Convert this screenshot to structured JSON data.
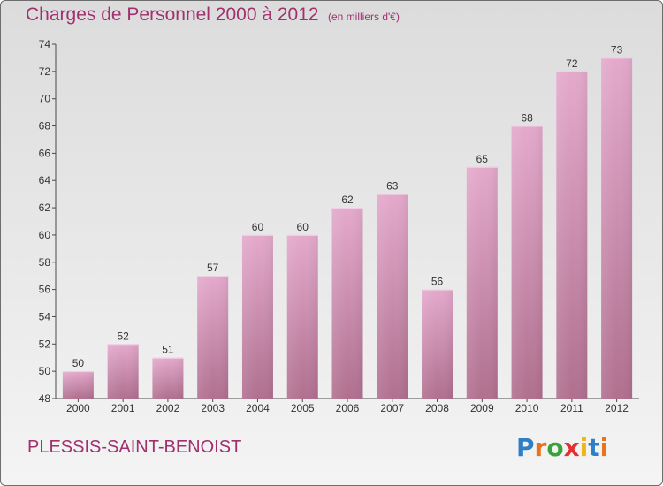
{
  "header": {
    "title": "Charges de Personnel 2000 à 2012",
    "subtitle": "(en milliers d'€)"
  },
  "footer": {
    "commune": "PLESSIS-SAINT-BENOIST",
    "logo_text": "Proxiti"
  },
  "colors": {
    "bar_top": "#e4a9cc",
    "bar_bottom": "#b0708f",
    "title": "#a0306e",
    "axis": "#4a4a4a"
  },
  "chart_data": {
    "type": "bar",
    "categories": [
      "2000",
      "2001",
      "2002",
      "2003",
      "2004",
      "2005",
      "2006",
      "2007",
      "2008",
      "2009",
      "2010",
      "2011",
      "2012"
    ],
    "values": [
      50,
      52,
      51,
      57,
      60,
      60,
      62,
      63,
      56,
      65,
      68,
      72,
      73
    ],
    "ylim": [
      48,
      74
    ],
    "yticks": [
      48,
      50,
      52,
      54,
      56,
      58,
      60,
      62,
      64,
      66,
      68,
      70,
      72,
      74
    ],
    "xlabel": "",
    "ylabel": "",
    "grid": false,
    "data_labels": true
  }
}
